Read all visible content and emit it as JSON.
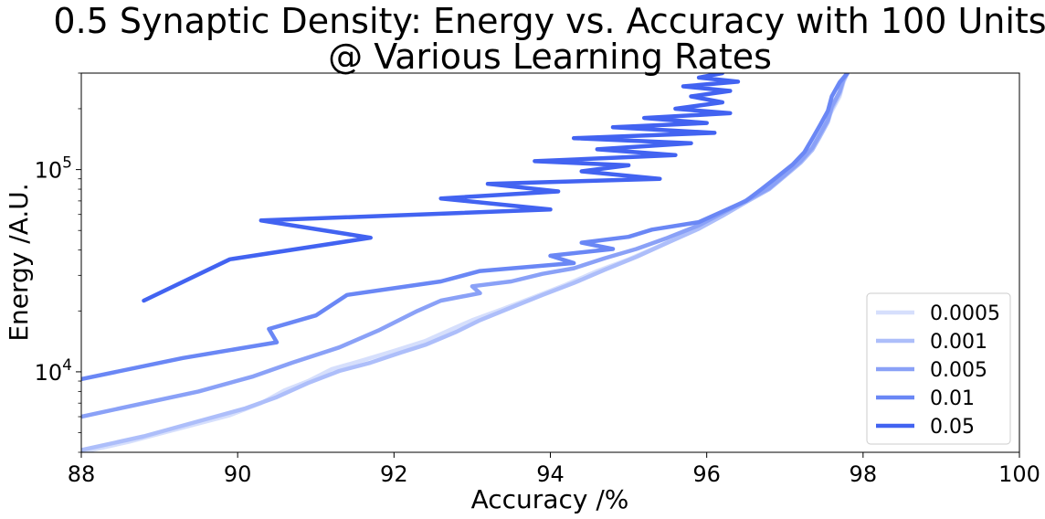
{
  "chart_data": {
    "type": "line",
    "title": "0.5 Synaptic Density: Energy vs. Accuracy with 100 Units",
    "subtitle": "@ Various Learning Rates",
    "xlabel": "Accuracy /%",
    "ylabel": "Energy /A.U.",
    "xlim": [
      88,
      100
    ],
    "ylim": [
      4000,
      300000
    ],
    "yscale": "log",
    "x_ticks": [
      "88",
      "90",
      "92",
      "94",
      "96",
      "98",
      "100"
    ],
    "y_ticks": [
      {
        "value": 10000,
        "base": "10",
        "exp": "4"
      },
      {
        "value": 100000,
        "base": "10",
        "exp": "5"
      }
    ],
    "grid": false,
    "legend_position": "lower-right",
    "series": [
      {
        "name": "0.0005",
        "color": "#d6dffc",
        "points": [
          [
            88.0,
            4000
          ],
          [
            88.6,
            4500
          ],
          [
            89.3,
            5300
          ],
          [
            89.9,
            6100
          ],
          [
            90.3,
            7000
          ],
          [
            90.6,
            8100
          ],
          [
            90.9,
            9000
          ],
          [
            91.2,
            10300
          ],
          [
            91.6,
            11400
          ],
          [
            92.0,
            12700
          ],
          [
            92.4,
            14200
          ],
          [
            92.7,
            16000
          ],
          [
            93.0,
            18000
          ],
          [
            93.4,
            20500
          ],
          [
            93.8,
            23500
          ],
          [
            94.2,
            27000
          ],
          [
            94.6,
            31500
          ],
          [
            95.0,
            36000
          ],
          [
            95.4,
            42000
          ],
          [
            95.8,
            50000
          ],
          [
            96.1,
            58000
          ],
          [
            96.4,
            67000
          ],
          [
            96.7,
            78000
          ],
          [
            96.9,
            90000
          ],
          [
            97.1,
            104000
          ],
          [
            97.3,
            120000
          ],
          [
            97.4,
            140000
          ],
          [
            97.5,
            165000
          ],
          [
            97.6,
            195000
          ],
          [
            97.7,
            230000
          ],
          [
            97.75,
            270000
          ],
          [
            97.8,
            300000
          ]
        ]
      },
      {
        "name": "0.001",
        "color": "#adbefa",
        "points": [
          [
            88.0,
            4100
          ],
          [
            88.8,
            4800
          ],
          [
            89.5,
            5700
          ],
          [
            90.1,
            6600
          ],
          [
            90.5,
            7500
          ],
          [
            90.9,
            8800
          ],
          [
            91.3,
            10100
          ],
          [
            91.7,
            11100
          ],
          [
            92.1,
            12500
          ],
          [
            92.4,
            13600
          ],
          [
            92.8,
            15800
          ],
          [
            93.1,
            18000
          ],
          [
            93.5,
            20800
          ],
          [
            93.9,
            24000
          ],
          [
            94.3,
            27500
          ],
          [
            94.7,
            32000
          ],
          [
            95.1,
            37000
          ],
          [
            95.5,
            43500
          ],
          [
            95.9,
            51000
          ],
          [
            96.2,
            59000
          ],
          [
            96.5,
            69000
          ],
          [
            96.8,
            80000
          ],
          [
            97.0,
            93000
          ],
          [
            97.2,
            108000
          ],
          [
            97.35,
            125000
          ],
          [
            97.45,
            146000
          ],
          [
            97.55,
            172000
          ],
          [
            97.6,
            200000
          ],
          [
            97.7,
            238000
          ],
          [
            97.75,
            275000
          ],
          [
            97.8,
            300000
          ]
        ]
      },
      {
        "name": "0.005",
        "color": "#8aa1f7",
        "points": [
          [
            88.0,
            6000
          ],
          [
            89.5,
            8000
          ],
          [
            90.2,
            9500
          ],
          [
            90.7,
            11100
          ],
          [
            91.3,
            13200
          ],
          [
            91.8,
            16000
          ],
          [
            92.3,
            20000
          ],
          [
            92.6,
            22500
          ],
          [
            93.1,
            24500
          ],
          [
            93.0,
            26500
          ],
          [
            93.5,
            28000
          ],
          [
            93.9,
            30500
          ],
          [
            94.3,
            32500
          ],
          [
            94.7,
            36500
          ],
          [
            95.1,
            40500
          ],
          [
            95.5,
            46000
          ],
          [
            95.9,
            53000
          ],
          [
            96.2,
            61000
          ],
          [
            96.5,
            70000
          ],
          [
            96.8,
            81000
          ],
          [
            97.0,
            94000
          ],
          [
            97.2,
            110000
          ],
          [
            97.35,
            128000
          ],
          [
            97.45,
            150000
          ],
          [
            97.55,
            176000
          ],
          [
            97.6,
            205000
          ],
          [
            97.7,
            243000
          ],
          [
            97.75,
            280000
          ],
          [
            97.8,
            300000
          ]
        ]
      },
      {
        "name": "0.01",
        "color": "#6a87f5",
        "points": [
          [
            88.0,
            9200
          ],
          [
            89.3,
            11700
          ],
          [
            90.5,
            14000
          ],
          [
            90.4,
            16300
          ],
          [
            91.0,
            19000
          ],
          [
            91.4,
            24000
          ],
          [
            92.6,
            28000
          ],
          [
            93.1,
            31500
          ],
          [
            94.3,
            34500
          ],
          [
            94.0,
            37500
          ],
          [
            94.8,
            40500
          ],
          [
            94.4,
            43500
          ],
          [
            95.0,
            46500
          ],
          [
            95.3,
            50500
          ],
          [
            95.9,
            55000
          ],
          [
            96.2,
            62000
          ],
          [
            96.5,
            70000
          ],
          [
            96.7,
            80000
          ],
          [
            96.9,
            92000
          ],
          [
            97.1,
            106000
          ],
          [
            97.25,
            122000
          ],
          [
            97.35,
            142000
          ],
          [
            97.45,
            166000
          ],
          [
            97.55,
            195000
          ],
          [
            97.6,
            230000
          ],
          [
            97.7,
            270000
          ],
          [
            97.8,
            300000
          ]
        ]
      },
      {
        "name": "0.05",
        "color": "#4263f1",
        "points": [
          [
            88.8,
            22500
          ],
          [
            89.9,
            36000
          ],
          [
            91.7,
            46000
          ],
          [
            90.3,
            56000
          ],
          [
            94.0,
            63500
          ],
          [
            92.6,
            72000
          ],
          [
            94.1,
            78000
          ],
          [
            93.2,
            85000
          ],
          [
            95.4,
            90000
          ],
          [
            94.4,
            98000
          ],
          [
            95.0,
            105000
          ],
          [
            93.8,
            110000
          ],
          [
            95.6,
            118000
          ],
          [
            94.6,
            126000
          ],
          [
            95.8,
            135000
          ],
          [
            94.3,
            143000
          ],
          [
            96.1,
            152000
          ],
          [
            94.8,
            162000
          ],
          [
            96.0,
            170000
          ],
          [
            95.2,
            180000
          ],
          [
            96.3,
            190000
          ],
          [
            95.6,
            200000
          ],
          [
            96.2,
            215000
          ],
          [
            95.8,
            230000
          ],
          [
            96.3,
            245000
          ],
          [
            95.7,
            258000
          ],
          [
            96.4,
            272000
          ],
          [
            95.9,
            285000
          ],
          [
            96.2,
            300000
          ]
        ]
      }
    ]
  }
}
